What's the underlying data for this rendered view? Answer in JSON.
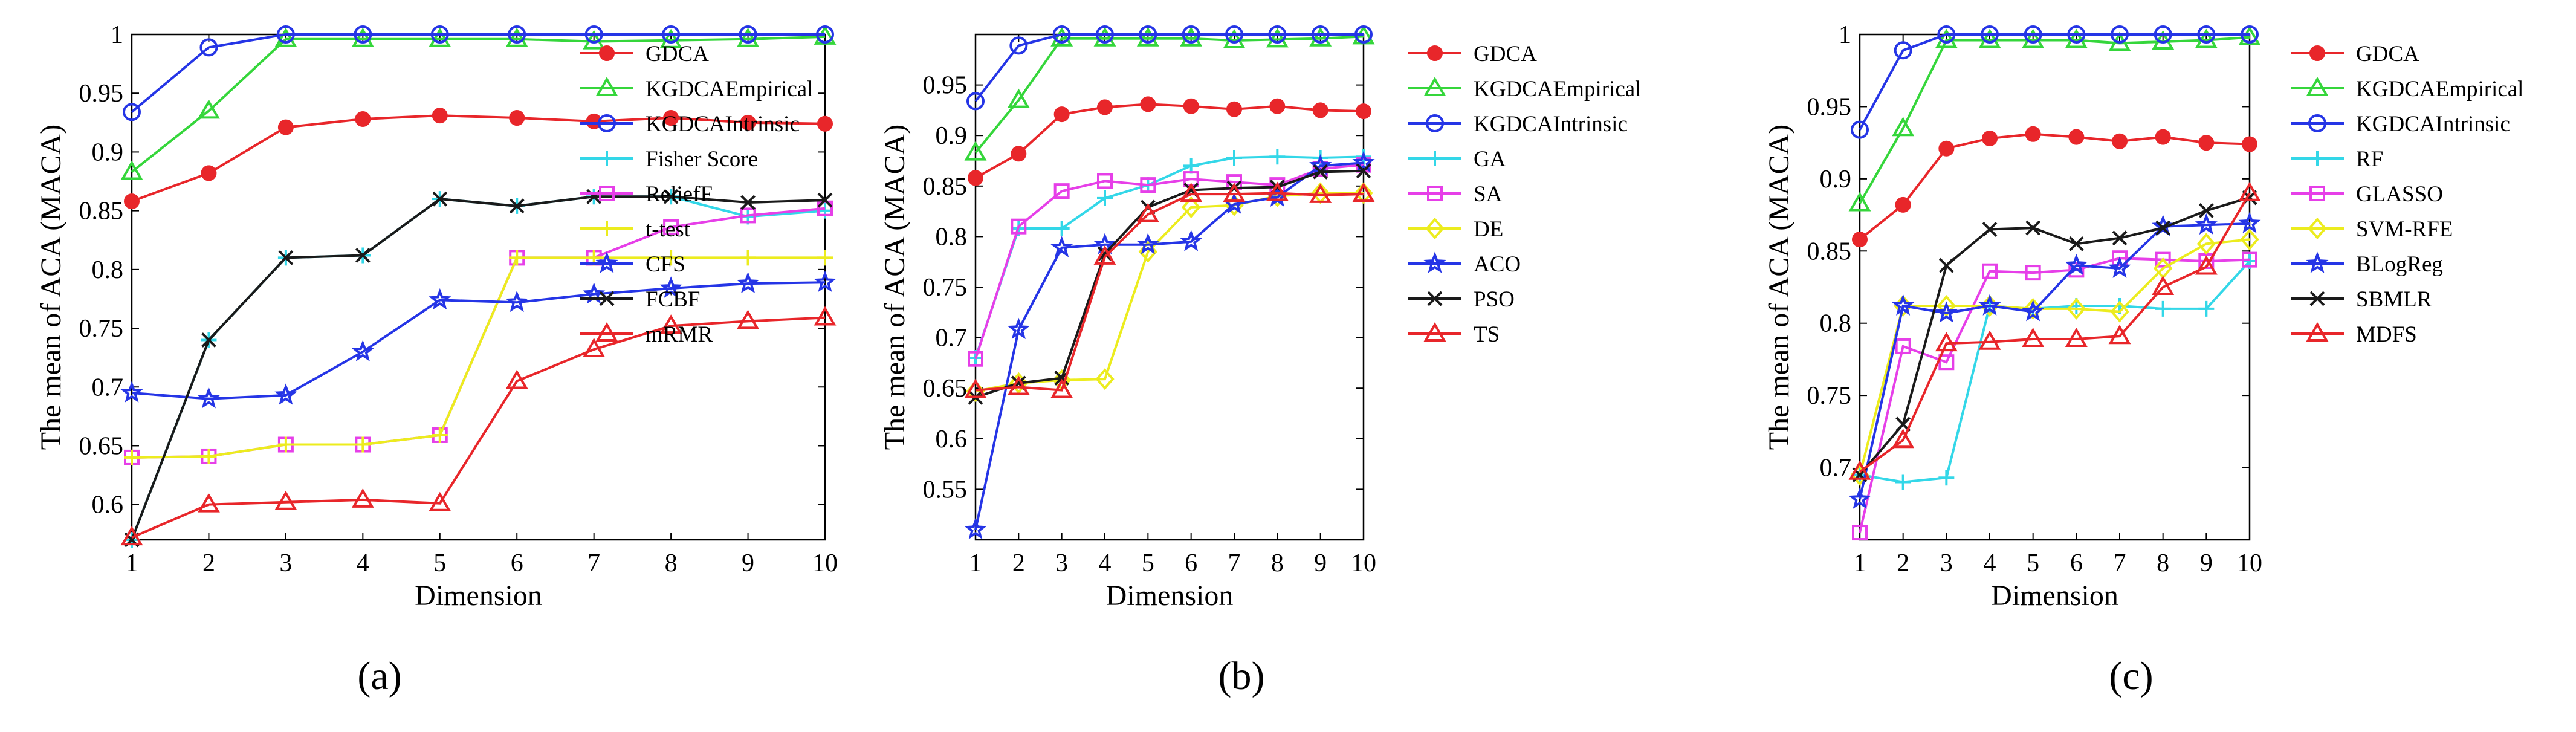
{
  "panel_labels": [
    "(a)",
    "(b)",
    "(c)"
  ],
  "chart_data": [
    {
      "type": "line",
      "panel": "(a)",
      "xlabel": "Dimension",
      "ylabel": "The mean of ACA (MACA)",
      "xlim": [
        1,
        10
      ],
      "ylim": [
        0.57,
        1.0
      ],
      "xticks": [
        1,
        2,
        3,
        4,
        5,
        6,
        7,
        8,
        9,
        10
      ],
      "yticks": [
        0.6,
        0.65,
        0.7,
        0.75,
        0.8,
        0.85,
        0.9,
        0.95,
        1
      ],
      "ytick_labels": [
        "0.6",
        "0.65",
        "0.7",
        "0.75",
        "0.8",
        "0.85",
        "0.9",
        "0.95",
        "1"
      ],
      "legend": "top-right-outside",
      "series": [
        {
          "name": "GDCA",
          "color": "#e8262a",
          "marker": "circle-filled",
          "values": [
            0.858,
            0.882,
            0.921,
            0.928,
            0.931,
            0.929,
            0.926,
            0.929,
            0.925,
            0.924
          ]
        },
        {
          "name": "KGDCAEmpirical",
          "color": "#35d63b",
          "marker": "triangle",
          "values": [
            0.883,
            0.935,
            0.996,
            0.996,
            0.996,
            0.996,
            0.994,
            0.995,
            0.996,
            0.998
          ]
        },
        {
          "name": "KGDCAIntrinsic",
          "color": "#2535e6",
          "marker": "circle",
          "values": [
            0.934,
            0.989,
            1.0,
            1.0,
            1.0,
            1.0,
            1.0,
            1.0,
            1.0,
            1.0
          ]
        },
        {
          "name": "Fisher Score",
          "color": "#33d7e8",
          "marker": "plus",
          "values": [
            0.57,
            0.74,
            0.81,
            0.812,
            0.86,
            0.854,
            0.862,
            0.862,
            0.845,
            0.85
          ]
        },
        {
          "name": "ReliefF",
          "color": "#e63fe8",
          "marker": "square",
          "values": [
            0.64,
            0.641,
            0.651,
            0.651,
            0.659,
            0.81,
            0.81,
            0.836,
            0.846,
            0.852
          ]
        },
        {
          "name": "t-test",
          "color": "#ecec1e",
          "marker": "plus",
          "values": [
            0.64,
            0.641,
            0.651,
            0.651,
            0.659,
            0.81,
            0.81,
            0.81,
            0.81,
            0.81
          ]
        },
        {
          "name": "CFS",
          "color": "#2535e6",
          "marker": "star",
          "values": [
            0.695,
            0.69,
            0.693,
            0.73,
            0.774,
            0.772,
            0.779,
            0.784,
            0.788,
            0.789
          ]
        },
        {
          "name": "FCBF",
          "color": "#1a1a1a",
          "marker": "x",
          "values": [
            0.57,
            0.74,
            0.81,
            0.812,
            0.86,
            0.854,
            0.862,
            0.862,
            0.857,
            0.859
          ]
        },
        {
          "name": "mRMR",
          "color": "#e8262a",
          "marker": "triangle",
          "values": [
            0.572,
            0.6,
            0.602,
            0.604,
            0.601,
            0.705,
            0.732,
            0.752,
            0.756,
            0.759
          ]
        }
      ]
    },
    {
      "type": "line",
      "panel": "(b)",
      "xlabel": "Dimension",
      "ylabel": "The mean of ACA (MACA)",
      "xlim": [
        1,
        10
      ],
      "ylim": [
        0.5,
        1.0
      ],
      "xticks": [
        1,
        2,
        3,
        4,
        5,
        6,
        7,
        8,
        9,
        10
      ],
      "yticks": [
        0.55,
        0.6,
        0.65,
        0.7,
        0.75,
        0.8,
        0.85,
        0.9,
        0.95
      ],
      "ytick_labels": [
        "0.55",
        "0.6",
        "0.65",
        "0.7",
        "0.75",
        "0.8",
        "0.85",
        "0.9",
        "0.95"
      ],
      "legend": "top-right-outside",
      "series": [
        {
          "name": "GDCA",
          "color": "#e8262a",
          "marker": "circle-filled",
          "values": [
            0.858,
            0.882,
            0.921,
            0.928,
            0.931,
            0.929,
            0.926,
            0.929,
            0.925,
            0.924
          ]
        },
        {
          "name": "KGDCAEmpirical",
          "color": "#35d63b",
          "marker": "triangle",
          "values": [
            0.883,
            0.935,
            0.996,
            0.996,
            0.996,
            0.996,
            0.994,
            0.995,
            0.996,
            0.998
          ]
        },
        {
          "name": "KGDCAIntrinsic",
          "color": "#2535e6",
          "marker": "circle",
          "values": [
            0.934,
            0.989,
            1.0,
            1.0,
            1.0,
            1.0,
            1.0,
            1.0,
            1.0,
            1.0
          ]
        },
        {
          "name": "GA",
          "color": "#33d7e8",
          "marker": "plus",
          "values": [
            0.68,
            0.808,
            0.808,
            0.838,
            0.851,
            0.87,
            0.878,
            0.879,
            0.878,
            0.879
          ]
        },
        {
          "name": "SA",
          "color": "#e63fe8",
          "marker": "square",
          "values": [
            0.679,
            0.81,
            0.845,
            0.855,
            0.851,
            0.857,
            0.854,
            0.851,
            0.867,
            0.871
          ]
        },
        {
          "name": "DE",
          "color": "#ecec1e",
          "marker": "diamond",
          "values": [
            0.647,
            0.655,
            0.658,
            0.659,
            0.785,
            0.829,
            0.831,
            0.84,
            0.843,
            0.843
          ]
        },
        {
          "name": "ACO",
          "color": "#2535e6",
          "marker": "star",
          "values": [
            0.51,
            0.708,
            0.789,
            0.792,
            0.792,
            0.795,
            0.832,
            0.839,
            0.87,
            0.873
          ]
        },
        {
          "name": "PSO",
          "color": "#1a1a1a",
          "marker": "x",
          "values": [
            0.641,
            0.655,
            0.66,
            0.783,
            0.829,
            0.846,
            0.848,
            0.849,
            0.864,
            0.865
          ]
        },
        {
          "name": "TS",
          "color": "#e8262a",
          "marker": "triangle",
          "values": [
            0.648,
            0.651,
            0.648,
            0.78,
            0.822,
            0.842,
            0.842,
            0.843,
            0.841,
            0.842
          ]
        }
      ]
    },
    {
      "type": "line",
      "panel": "(c)",
      "xlabel": "Dimension",
      "ylabel": "The mean of ACA (MACA)",
      "xlim": [
        1,
        10
      ],
      "ylim": [
        0.65,
        1.0
      ],
      "xticks": [
        1,
        2,
        3,
        4,
        5,
        6,
        7,
        8,
        9,
        10
      ],
      "yticks": [
        0.7,
        0.75,
        0.8,
        0.85,
        0.9,
        0.95,
        1
      ],
      "ytick_labels": [
        "0.7",
        "0.75",
        "0.8",
        "0.85",
        "0.9",
        "0.95",
        "1"
      ],
      "legend": "top-right-outside",
      "series": [
        {
          "name": "GDCA",
          "color": "#e8262a",
          "marker": "circle-filled",
          "values": [
            0.858,
            0.882,
            0.921,
            0.928,
            0.931,
            0.929,
            0.926,
            0.929,
            0.925,
            0.924
          ]
        },
        {
          "name": "KGDCAEmpirical",
          "color": "#35d63b",
          "marker": "triangle",
          "values": [
            0.883,
            0.935,
            0.996,
            0.996,
            0.996,
            0.996,
            0.994,
            0.995,
            0.996,
            0.998
          ]
        },
        {
          "name": "KGDCAIntrinsic",
          "color": "#2535e6",
          "marker": "circle",
          "values": [
            0.934,
            0.989,
            1.0,
            1.0,
            1.0,
            1.0,
            1.0,
            1.0,
            1.0,
            1.0
          ]
        },
        {
          "name": "RF",
          "color": "#33d7e8",
          "marker": "plus",
          "values": [
            0.695,
            0.69,
            0.693,
            0.812,
            0.81,
            0.812,
            0.812,
            0.81,
            0.81,
            0.843
          ]
        },
        {
          "name": "GLASSO",
          "color": "#e63fe8",
          "marker": "square",
          "values": [
            0.655,
            0.784,
            0.773,
            0.836,
            0.835,
            0.837,
            0.845,
            0.844,
            0.843,
            0.844
          ]
        },
        {
          "name": "SVM-RFE",
          "color": "#ecec1e",
          "marker": "diamond",
          "values": [
            0.695,
            0.812,
            0.812,
            0.812,
            0.81,
            0.81,
            0.808,
            0.838,
            0.855,
            0.858
          ]
        },
        {
          "name": "BLogReg",
          "color": "#2535e6",
          "marker": "star",
          "values": [
            0.678,
            0.812,
            0.807,
            0.812,
            0.808,
            0.84,
            0.838,
            0.867,
            0.868,
            0.869
          ]
        },
        {
          "name": "SBMLR",
          "color": "#1a1a1a",
          "marker": "x",
          "values": [
            0.695,
            0.73,
            0.84,
            0.865,
            0.866,
            0.855,
            0.859,
            0.866,
            0.878,
            0.887
          ]
        },
        {
          "name": "MDFS",
          "color": "#e8262a",
          "marker": "triangle",
          "values": [
            0.697,
            0.719,
            0.786,
            0.787,
            0.789,
            0.789,
            0.791,
            0.825,
            0.839,
            0.89
          ]
        }
      ]
    }
  ]
}
